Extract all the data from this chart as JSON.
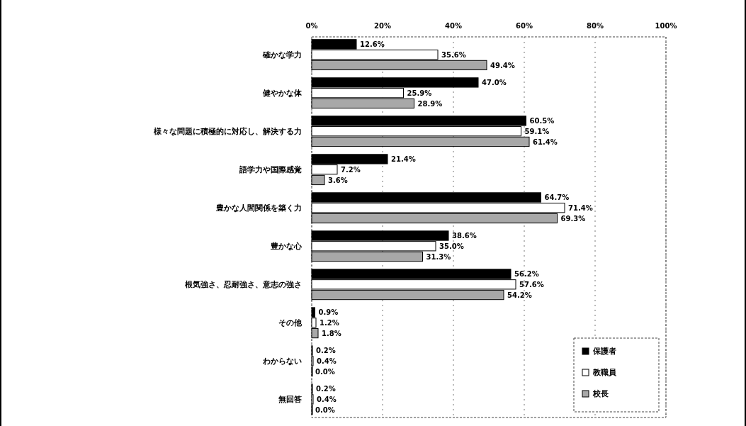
{
  "chart_data": {
    "type": "bar",
    "orientation": "horizontal",
    "categories": [
      "確かな学力",
      "健やかな体",
      "様々な問題に積極的に対応し、解決する力",
      "語学力や国際感覚",
      "豊かな人間関係を築く力",
      "豊かな心",
      "根気強さ、忍耐強さ、意志の強さ",
      "その他",
      "わからない",
      "無回答"
    ],
    "series": [
      {
        "name": "保護者",
        "color": "#000000",
        "values": [
          12.6,
          47.0,
          60.5,
          21.4,
          64.7,
          38.6,
          56.2,
          0.9,
          0.2,
          0.2
        ],
        "value_labels": [
          "12.6%",
          "47.0%",
          "60.5%",
          "21.4%",
          "64.7%",
          "38.6%",
          "56.2%",
          "0.9%",
          "0.2%",
          "0.2%"
        ]
      },
      {
        "name": "教職員",
        "color": "#ffffff",
        "values": [
          35.6,
          25.9,
          59.1,
          7.2,
          71.4,
          35.0,
          57.6,
          1.2,
          0.4,
          0.4
        ],
        "value_labels": [
          "35.6%",
          "25.9%",
          "59.1%",
          "7.2%",
          "71.4%",
          "35.0%",
          "57.6%",
          "1.2%",
          "0.4%",
          "0.4%"
        ]
      },
      {
        "name": "校長",
        "color": "#a8a8a8",
        "values": [
          49.4,
          28.9,
          61.4,
          3.6,
          69.3,
          31.3,
          54.2,
          1.8,
          0.0,
          0.0
        ],
        "value_labels": [
          "49.4%",
          "28.9%",
          "61.4%",
          "3.6%",
          "69.3%",
          "31.3%",
          "54.2%",
          "1.8%",
          "0.0%",
          "0.0%"
        ]
      }
    ],
    "xlim": [
      0,
      100
    ],
    "xticks": [
      {
        "value": 0,
        "label": "0%"
      },
      {
        "value": 20,
        "label": "20%"
      },
      {
        "value": 40,
        "label": "40%"
      },
      {
        "value": 60,
        "label": "60%"
      },
      {
        "value": 80,
        "label": "80%"
      },
      {
        "value": 100,
        "label": "100%"
      }
    ],
    "grid": "x",
    "legend": "bottom right"
  }
}
